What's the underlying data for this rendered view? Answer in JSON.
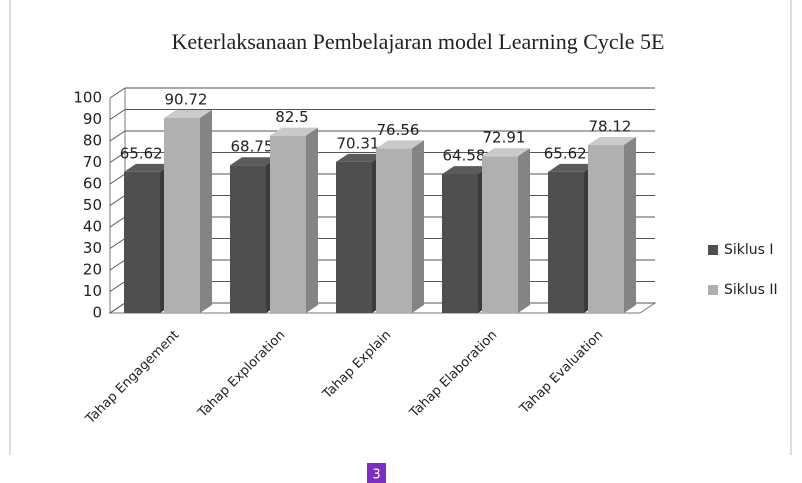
{
  "chart_data": {
    "type": "bar3d",
    "title": "Keterlaksanaan Pembelajaran model Learning Cycle 5E",
    "categories": [
      "Tahap Engagement",
      "Tahap Exploration",
      "Tahap Explain",
      "Tahap Elaboration",
      "Tahap Evaluation"
    ],
    "series": [
      {
        "name": "Siklus I",
        "color": "#4f4f4f",
        "values": [
          65.625,
          68.75,
          70.31,
          64.58,
          65.625
        ]
      },
      {
        "name": "Siklus II",
        "color": "#b0b0b0",
        "values": [
          90.72,
          82.5,
          76.56,
          72.91,
          78.12
        ]
      }
    ],
    "ylim": [
      0,
      100
    ],
    "yticks": [
      0,
      10,
      20,
      30,
      40,
      50,
      60,
      70,
      80,
      90,
      100
    ],
    "grid": true,
    "legend": "right"
  },
  "page_label": "3"
}
